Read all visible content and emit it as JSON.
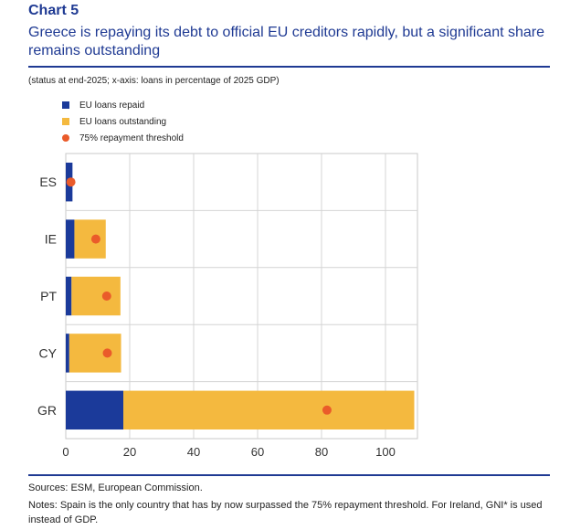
{
  "header": {
    "chart_label": "Chart 5",
    "title": "Greece is repaying its debt to official EU creditors rapidly, but a significant share remains outstanding"
  },
  "status_note": "(status at end-2025; x-axis: loans in percentage of 2025 GDP)",
  "legend": {
    "items": [
      {
        "label": "EU loans repaid",
        "shape": "square",
        "color": "#1b3a9a"
      },
      {
        "label": "EU loans outstanding",
        "shape": "square",
        "color": "#f4b93f"
      },
      {
        "label": "75% repayment threshold",
        "shape": "dot",
        "color": "#ea5b2a"
      }
    ]
  },
  "chart_data": {
    "type": "bar",
    "orientation": "horizontal",
    "stacked": true,
    "categories": [
      "ES",
      "IE",
      "PT",
      "CY",
      "GR"
    ],
    "series": [
      {
        "name": "EU loans repaid",
        "values": [
          2.1,
          2.7,
          1.8,
          1.1,
          18.0
        ],
        "color": "#1b3a9a"
      },
      {
        "name": "EU loans outstanding",
        "values": [
          0.0,
          9.8,
          15.3,
          16.2,
          91.0
        ],
        "color": "#f4b93f"
      }
    ],
    "markers": {
      "name": "75% repayment threshold",
      "values": [
        1.6,
        9.4,
        12.8,
        13.0,
        81.7
      ],
      "color": "#ea5b2a"
    },
    "xlim": [
      0,
      110
    ],
    "xticks": [
      0,
      20,
      40,
      60,
      80,
      100
    ],
    "xlabel": "loans in percentage of 2025 GDP",
    "grid": true
  },
  "footer": {
    "sources": "Sources: ESM, European Commission.",
    "notes": "Notes: Spain is the only country that has by now surpassed the 75% repayment threshold. For Ireland, GNI* is used instead of GDP."
  }
}
